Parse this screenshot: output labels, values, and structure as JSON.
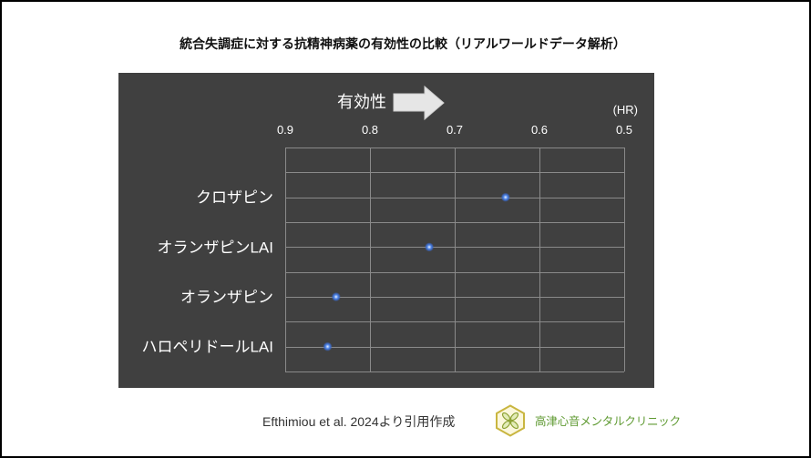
{
  "slide": {
    "citation": "Efthimiou et al. 2024より引用作成",
    "clinic_name": "高津心音メンタルクリニック"
  },
  "colors": {
    "chart_background": "#404040",
    "gridline": "#8a8a8a",
    "chart_text": "#ffffff",
    "point": "#4f86e8",
    "clinic_name": "#5f9a32",
    "logo_outline": "#c9b640"
  },
  "icons": {
    "direction_arrow": "right-arrow-icon",
    "clinic_logo": "hexagon-leaf-logo-icon"
  },
  "chart_data": {
    "type": "scatter",
    "title": "統合失調症に対する抗精神病薬の有効性の比較（リアルワールドデータ解析）",
    "annotation": "有効性",
    "xlabel": "(HR)",
    "x_axis_position": "top",
    "x_reversed": true,
    "xlim": [
      0.9,
      0.5
    ],
    "x_ticks": [
      0.9,
      0.8,
      0.7,
      0.6,
      0.5
    ],
    "grid": true,
    "legend": "none",
    "categories": [
      "クロザピン",
      "オランザピンLAI",
      "オランザピン",
      "ハロペリドールLAI"
    ],
    "series": [
      {
        "values": [
          0.64,
          0.73,
          0.84,
          0.85
        ]
      }
    ]
  }
}
